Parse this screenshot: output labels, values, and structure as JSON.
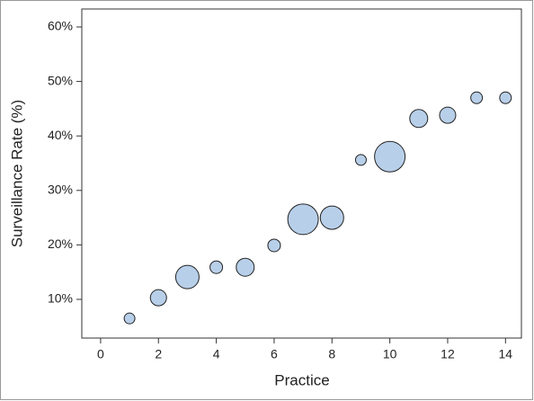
{
  "chart_data": {
    "type": "scatter",
    "x_label": "Practice",
    "y_label": "Surveillance Rate (%)",
    "x": [
      1,
      2,
      3,
      4,
      5,
      6,
      7,
      8,
      9,
      10,
      11,
      12,
      13,
      14
    ],
    "values": [
      6.5,
      10.3,
      14.1,
      15.9,
      15.9,
      19.9,
      24.7,
      25.0,
      35.6,
      36.2,
      43.2,
      43.8,
      47.0,
      47.0
    ],
    "sizes": [
      36,
      81,
      169,
      49,
      100,
      49,
      289,
      169,
      36,
      289,
      100,
      81,
      42,
      42
    ],
    "color": "#b8cfe9",
    "xlim": [
      -0.65,
      14.55
    ],
    "xticks": [
      0,
      2,
      4,
      6,
      8,
      10,
      12,
      14
    ],
    "ylim": [
      2.9,
      63.3
    ],
    "yticks": [
      {
        "value": 10,
        "label": "10%"
      },
      {
        "value": 20,
        "label": "20%"
      },
      {
        "value": 30,
        "label": "30%"
      },
      {
        "value": 40,
        "label": "40%"
      },
      {
        "value": 50,
        "label": "50%"
      },
      {
        "value": 60,
        "label": "60%"
      }
    ]
  }
}
